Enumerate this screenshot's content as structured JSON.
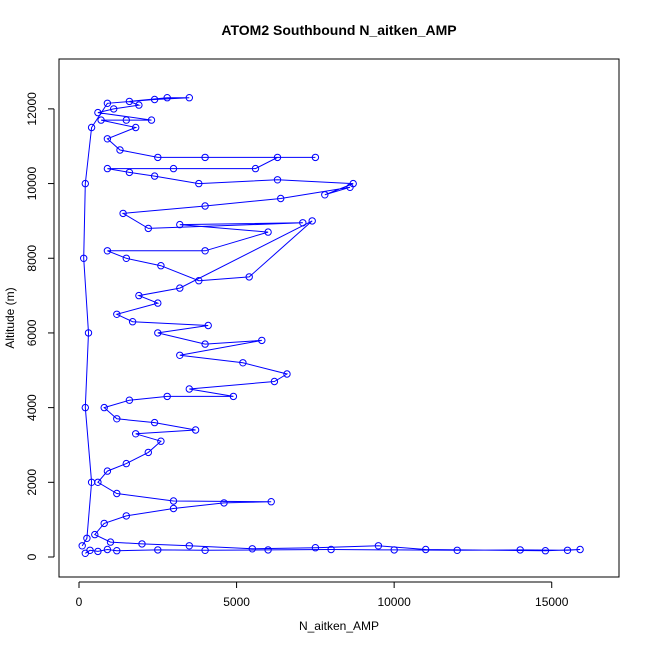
{
  "chart_data": {
    "type": "scatter",
    "title": "ATOM2 Southbound N_aitken_AMP",
    "xlabel": "N_aitken_AMP",
    "ylabel": "Altitude (m)",
    "xlim": [
      0,
      16500
    ],
    "ylim": [
      0,
      12800
    ],
    "x_ticks": [
      0,
      5000,
      10000,
      15000
    ],
    "x_tick_labels": [
      "0",
      "5000",
      "10000",
      "15000"
    ],
    "y_ticks": [
      0,
      2000,
      4000,
      6000,
      8000,
      10000,
      12000
    ],
    "y_tick_labels": [
      "0",
      "2000",
      "4000",
      "6000",
      "8000",
      "10000",
      "12000"
    ],
    "grid": false,
    "legend": "none",
    "style": "points-and-lines",
    "colors": {
      "series": "#0000ff",
      "axis": "#000000"
    },
    "series": [
      {
        "points": [
          [
            200,
            100
          ],
          [
            350,
            180
          ],
          [
            600,
            150
          ],
          [
            900,
            200
          ],
          [
            1200,
            170
          ],
          [
            2500,
            190
          ],
          [
            4000,
            180
          ],
          [
            6000,
            190
          ],
          [
            8000,
            200
          ],
          [
            10000,
            190
          ],
          [
            12000,
            180
          ],
          [
            14000,
            190
          ],
          [
            15500,
            180
          ],
          [
            15900,
            200
          ],
          [
            14800,
            170
          ],
          [
            11000,
            200
          ],
          [
            9500,
            300
          ],
          [
            7500,
            250
          ],
          [
            5500,
            220
          ],
          [
            3500,
            300
          ],
          [
            2000,
            350
          ],
          [
            1000,
            400
          ],
          [
            500,
            600
          ],
          [
            800,
            900
          ],
          [
            1500,
            1100
          ],
          [
            3000,
            1300
          ],
          [
            4600,
            1450
          ],
          [
            6100,
            1480
          ],
          [
            3000,
            1500
          ],
          [
            1200,
            1700
          ],
          [
            600,
            2000
          ],
          [
            900,
            2300
          ],
          [
            1500,
            2500
          ],
          [
            2200,
            2800
          ],
          [
            2600,
            3100
          ],
          [
            1800,
            3300
          ],
          [
            3700,
            3400
          ],
          [
            2400,
            3600
          ],
          [
            1200,
            3700
          ],
          [
            800,
            4000
          ],
          [
            1600,
            4200
          ],
          [
            2800,
            4300
          ],
          [
            4900,
            4300
          ],
          [
            3500,
            4500
          ],
          [
            6200,
            4700
          ],
          [
            6600,
            4900
          ],
          [
            5200,
            5200
          ],
          [
            3200,
            5400
          ],
          [
            5800,
            5800
          ],
          [
            4000,
            5700
          ],
          [
            2500,
            6000
          ],
          [
            4100,
            6200
          ],
          [
            1700,
            6300
          ],
          [
            1200,
            6500
          ],
          [
            2500,
            6800
          ],
          [
            1900,
            7000
          ],
          [
            3200,
            7200
          ],
          [
            7400,
            9000
          ],
          [
            5400,
            7500
          ],
          [
            3800,
            7400
          ],
          [
            2600,
            7800
          ],
          [
            1500,
            8000
          ],
          [
            900,
            8200
          ],
          [
            4000,
            8200
          ],
          [
            6000,
            8700
          ],
          [
            3200,
            8900
          ],
          [
            7100,
            8950
          ],
          [
            2200,
            8800
          ],
          [
            1400,
            9200
          ],
          [
            4000,
            9400
          ],
          [
            6400,
            9600
          ],
          [
            8600,
            9900
          ],
          [
            7800,
            9700
          ],
          [
            8700,
            10000
          ],
          [
            6300,
            10100
          ],
          [
            3800,
            10000
          ],
          [
            2400,
            10200
          ],
          [
            1600,
            10300
          ],
          [
            900,
            10400
          ],
          [
            3000,
            10400
          ],
          [
            5600,
            10400
          ],
          [
            6300,
            10700
          ],
          [
            7500,
            10700
          ],
          [
            4000,
            10700
          ],
          [
            2500,
            10700
          ],
          [
            1300,
            10900
          ],
          [
            900,
            11200
          ],
          [
            1800,
            11500
          ],
          [
            700,
            11700
          ],
          [
            1500,
            11700
          ],
          [
            2300,
            11700
          ],
          [
            600,
            11900
          ],
          [
            1100,
            12000
          ],
          [
            1900,
            12100
          ],
          [
            1600,
            12200
          ],
          [
            2800,
            12300
          ],
          [
            3500,
            12300
          ],
          [
            2400,
            12250
          ],
          [
            900,
            12150
          ],
          [
            400,
            11500
          ],
          [
            200,
            10000
          ],
          [
            150,
            8000
          ],
          [
            300,
            6000
          ],
          [
            200,
            4000
          ],
          [
            400,
            2000
          ],
          [
            250,
            500
          ],
          [
            100,
            300
          ]
        ]
      }
    ]
  }
}
